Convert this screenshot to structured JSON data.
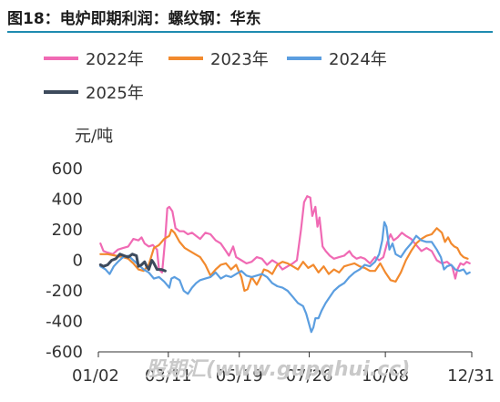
{
  "title": "图18：电炉即期利润：螺纹钢：华东",
  "unit_label": "元/吨",
  "watermark": "股期汇(www.gupqhui.cc)",
  "colors": {
    "2022年": "#f06ab4",
    "2023年": "#f28a2e",
    "2024年": "#5b9ee0",
    "2025年": "#3d4a5c",
    "title_rule": "#1f8bb0"
  },
  "chart_data": {
    "type": "line",
    "title": "",
    "xlabel": "",
    "ylabel": "元/吨",
    "ylim": [
      -600,
      600
    ],
    "yticks": [
      600,
      400,
      200,
      0,
      -200,
      -400,
      -600
    ],
    "xticks": [
      "01/02",
      "03/11",
      "05/19",
      "07/26",
      "10/08",
      "12/31"
    ],
    "xtick_days": [
      1,
      69,
      138,
      206,
      280,
      364
    ],
    "xlim": [
      1,
      364
    ],
    "grid": false,
    "legend_position": "top",
    "series": [
      {
        "name": "2022年",
        "points": [
          [
            3,
            110
          ],
          [
            6,
            60
          ],
          [
            10,
            50
          ],
          [
            15,
            40
          ],
          [
            20,
            70
          ],
          [
            25,
            80
          ],
          [
            30,
            90
          ],
          [
            35,
            140
          ],
          [
            40,
            130
          ],
          [
            43,
            150
          ],
          [
            46,
            110
          ],
          [
            50,
            90
          ],
          [
            54,
            100
          ],
          [
            58,
            70
          ],
          [
            60,
            -60
          ],
          [
            63,
            -80
          ],
          [
            66,
            140
          ],
          [
            68,
            340
          ],
          [
            70,
            350
          ],
          [
            73,
            320
          ],
          [
            76,
            210
          ],
          [
            80,
            190
          ],
          [
            84,
            190
          ],
          [
            88,
            170
          ],
          [
            92,
            180
          ],
          [
            96,
            160
          ],
          [
            100,
            140
          ],
          [
            105,
            180
          ],
          [
            110,
            170
          ],
          [
            115,
            130
          ],
          [
            120,
            110
          ],
          [
            125,
            60
          ],
          [
            128,
            30
          ],
          [
            132,
            90
          ],
          [
            135,
            20
          ],
          [
            140,
            0
          ],
          [
            145,
            -20
          ],
          [
            150,
            -10
          ],
          [
            155,
            20
          ],
          [
            160,
            10
          ],
          [
            165,
            -30
          ],
          [
            170,
            0
          ],
          [
            175,
            -20
          ],
          [
            180,
            -60
          ],
          [
            185,
            -40
          ],
          [
            190,
            -20
          ],
          [
            194,
            0
          ],
          [
            198,
            200
          ],
          [
            201,
            380
          ],
          [
            204,
            420
          ],
          [
            207,
            410
          ],
          [
            209,
            290
          ],
          [
            212,
            350
          ],
          [
            214,
            220
          ],
          [
            216,
            280
          ],
          [
            219,
            90
          ],
          [
            222,
            60
          ],
          [
            226,
            30
          ],
          [
            230,
            10
          ],
          [
            235,
            20
          ],
          [
            240,
            30
          ],
          [
            245,
            60
          ],
          [
            248,
            30
          ],
          [
            252,
            10
          ],
          [
            256,
            20
          ],
          [
            260,
            10
          ],
          [
            265,
            -20
          ],
          [
            270,
            20
          ],
          [
            274,
            0
          ],
          [
            278,
            20
          ],
          [
            282,
            120
          ],
          [
            285,
            170
          ],
          [
            288,
            130
          ],
          [
            292,
            150
          ],
          [
            296,
            180
          ],
          [
            300,
            160
          ],
          [
            305,
            140
          ],
          [
            310,
            100
          ],
          [
            315,
            60
          ],
          [
            320,
            80
          ],
          [
            325,
            60
          ],
          [
            330,
            0
          ],
          [
            335,
            -20
          ],
          [
            340,
            -10
          ],
          [
            345,
            -40
          ],
          [
            348,
            -120
          ],
          [
            350,
            -60
          ],
          [
            353,
            -20
          ],
          [
            356,
            -30
          ],
          [
            359,
            -10
          ],
          [
            362,
            -20
          ]
        ]
      },
      {
        "name": "2023年",
        "points": [
          [
            3,
            40
          ],
          [
            10,
            40
          ],
          [
            18,
            30
          ],
          [
            25,
            20
          ],
          [
            30,
            10
          ],
          [
            35,
            -20
          ],
          [
            40,
            -60
          ],
          [
            45,
            -70
          ],
          [
            50,
            -30
          ],
          [
            55,
            80
          ],
          [
            60,
            100
          ],
          [
            65,
            140
          ],
          [
            70,
            160
          ],
          [
            72,
            200
          ],
          [
            75,
            180
          ],
          [
            80,
            120
          ],
          [
            85,
            80
          ],
          [
            90,
            60
          ],
          [
            95,
            40
          ],
          [
            100,
            20
          ],
          [
            105,
            -30
          ],
          [
            110,
            -100
          ],
          [
            115,
            -60
          ],
          [
            120,
            -30
          ],
          [
            125,
            -20
          ],
          [
            130,
            -60
          ],
          [
            135,
            -30
          ],
          [
            140,
            -110
          ],
          [
            143,
            -200
          ],
          [
            146,
            -190
          ],
          [
            150,
            -110
          ],
          [
            155,
            -160
          ],
          [
            158,
            -120
          ],
          [
            162,
            -60
          ],
          [
            166,
            -70
          ],
          [
            170,
            -90
          ],
          [
            175,
            -30
          ],
          [
            180,
            -10
          ],
          [
            185,
            -20
          ],
          [
            190,
            -40
          ],
          [
            195,
            -60
          ],
          [
            200,
            -10
          ],
          [
            205,
            -50
          ],
          [
            210,
            -30
          ],
          [
            215,
            -80
          ],
          [
            220,
            -40
          ],
          [
            225,
            -90
          ],
          [
            230,
            -60
          ],
          [
            235,
            -80
          ],
          [
            240,
            -40
          ],
          [
            245,
            -30
          ],
          [
            250,
            -20
          ],
          [
            255,
            -40
          ],
          [
            260,
            -50
          ],
          [
            265,
            -70
          ],
          [
            270,
            -70
          ],
          [
            275,
            -20
          ],
          [
            280,
            -80
          ],
          [
            285,
            -130
          ],
          [
            290,
            -140
          ],
          [
            295,
            -80
          ],
          [
            300,
            0
          ],
          [
            305,
            60
          ],
          [
            310,
            110
          ],
          [
            315,
            140
          ],
          [
            320,
            160
          ],
          [
            325,
            170
          ],
          [
            330,
            210
          ],
          [
            335,
            180
          ],
          [
            338,
            120
          ],
          [
            341,
            150
          ],
          [
            344,
            110
          ],
          [
            347,
            90
          ],
          [
            350,
            80
          ],
          [
            353,
            40
          ],
          [
            356,
            20
          ],
          [
            360,
            10
          ]
        ]
      },
      {
        "name": "2024年",
        "points": [
          [
            3,
            -40
          ],
          [
            8,
            -60
          ],
          [
            12,
            -90
          ],
          [
            16,
            -40
          ],
          [
            20,
            -10
          ],
          [
            25,
            20
          ],
          [
            30,
            30
          ],
          [
            35,
            0
          ],
          [
            40,
            -30
          ],
          [
            45,
            -60
          ],
          [
            50,
            -80
          ],
          [
            55,
            -120
          ],
          [
            60,
            -110
          ],
          [
            65,
            -140
          ],
          [
            70,
            -180
          ],
          [
            72,
            -120
          ],
          [
            75,
            -110
          ],
          [
            80,
            -130
          ],
          [
            84,
            -200
          ],
          [
            88,
            -220
          ],
          [
            92,
            -180
          ],
          [
            96,
            -150
          ],
          [
            100,
            -130
          ],
          [
            105,
            -120
          ],
          [
            110,
            -110
          ],
          [
            115,
            -80
          ],
          [
            120,
            -120
          ],
          [
            125,
            -100
          ],
          [
            130,
            -110
          ],
          [
            135,
            -90
          ],
          [
            140,
            -70
          ],
          [
            145,
            -100
          ],
          [
            150,
            -110
          ],
          [
            155,
            -100
          ],
          [
            160,
            -90
          ],
          [
            165,
            -110
          ],
          [
            170,
            -150
          ],
          [
            175,
            -170
          ],
          [
            180,
            -180
          ],
          [
            185,
            -200
          ],
          [
            190,
            -240
          ],
          [
            195,
            -280
          ],
          [
            200,
            -300
          ],
          [
            203,
            -350
          ],
          [
            206,
            -420
          ],
          [
            208,
            -470
          ],
          [
            210,
            -440
          ],
          [
            212,
            -380
          ],
          [
            215,
            -380
          ],
          [
            218,
            -330
          ],
          [
            222,
            -280
          ],
          [
            226,
            -240
          ],
          [
            230,
            -200
          ],
          [
            235,
            -170
          ],
          [
            240,
            -150
          ],
          [
            245,
            -110
          ],
          [
            250,
            -80
          ],
          [
            255,
            -60
          ],
          [
            260,
            -30
          ],
          [
            265,
            -40
          ],
          [
            270,
            -10
          ],
          [
            274,
            40
          ],
          [
            277,
            130
          ],
          [
            279,
            250
          ],
          [
            281,
            220
          ],
          [
            284,
            70
          ],
          [
            287,
            110
          ],
          [
            290,
            40
          ],
          [
            295,
            20
          ],
          [
            300,
            70
          ],
          [
            305,
            110
          ],
          [
            310,
            160
          ],
          [
            315,
            130
          ],
          [
            320,
            120
          ],
          [
            325,
            120
          ],
          [
            330,
            70
          ],
          [
            334,
            20
          ],
          [
            337,
            -60
          ],
          [
            340,
            -40
          ],
          [
            344,
            -30
          ],
          [
            348,
            -60
          ],
          [
            352,
            -70
          ],
          [
            356,
            -60
          ],
          [
            359,
            -90
          ],
          [
            362,
            -80
          ]
        ]
      },
      {
        "name": "2025年",
        "points": [
          [
            3,
            -30
          ],
          [
            6,
            -40
          ],
          [
            10,
            -30
          ],
          [
            14,
            0
          ],
          [
            18,
            10
          ],
          [
            22,
            40
          ],
          [
            26,
            30
          ],
          [
            30,
            20
          ],
          [
            34,
            40
          ],
          [
            38,
            30
          ],
          [
            40,
            -40
          ],
          [
            43,
            -30
          ],
          [
            46,
            -10
          ],
          [
            48,
            -40
          ],
          [
            50,
            -60
          ],
          [
            53,
            0
          ],
          [
            55,
            -20
          ],
          [
            58,
            -60
          ],
          [
            62,
            -60
          ],
          [
            66,
            -70
          ]
        ]
      }
    ]
  }
}
